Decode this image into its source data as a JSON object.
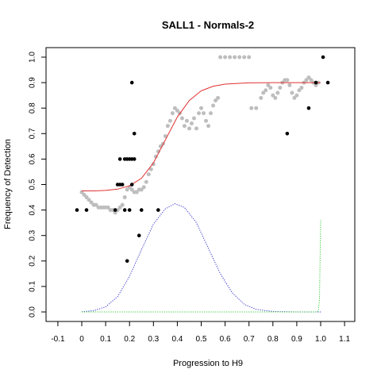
{
  "chart_data": {
    "type": "scatter",
    "title": "SALL1 - Normals-2",
    "xlabel": "Progression to H9",
    "ylabel": "Frequency of Detection",
    "xlim": [
      -0.1,
      1.1
    ],
    "ylim": [
      0.0,
      1.0
    ],
    "x_ticks": [
      "-0.1",
      "0",
      "0.1",
      "0.2",
      "0.3",
      "0.4",
      "0.5",
      "0.6",
      "0.7",
      "0.8",
      "0.9",
      "1.0",
      "1.1"
    ],
    "x_tick_values": [
      -0.1,
      0.0,
      0.1,
      0.2,
      0.3,
      0.4,
      0.5,
      0.6,
      0.7,
      0.8,
      0.9,
      1.0,
      1.1
    ],
    "y_ticks": [
      "0.0",
      "0.1",
      "0.2",
      "0.3",
      "0.4",
      "0.5",
      "0.6",
      "0.7",
      "0.8",
      "0.9",
      "1.0"
    ],
    "y_tick_values": [
      0.0,
      0.1,
      0.2,
      0.3,
      0.4,
      0.5,
      0.6,
      0.7,
      0.8,
      0.9,
      1.0
    ],
    "grid": false,
    "series": [
      {
        "kind": "points",
        "color": "#000000",
        "points": [
          [
            -0.02,
            0.4
          ],
          [
            0.02,
            0.4
          ],
          [
            0.14,
            0.4
          ],
          [
            0.15,
            0.5
          ],
          [
            0.16,
            0.6
          ],
          [
            0.16,
            0.5
          ],
          [
            0.17,
            0.5
          ],
          [
            0.18,
            0.6
          ],
          [
            0.18,
            0.4
          ],
          [
            0.19,
            0.6
          ],
          [
            0.19,
            0.2
          ],
          [
            0.2,
            0.4
          ],
          [
            0.2,
            0.6
          ],
          [
            0.21,
            0.6
          ],
          [
            0.21,
            0.5
          ],
          [
            0.21,
            0.9
          ],
          [
            0.22,
            0.7
          ],
          [
            0.22,
            0.6
          ],
          [
            0.24,
            0.3
          ],
          [
            0.25,
            0.4
          ],
          [
            0.32,
            0.4
          ],
          [
            0.86,
            0.7
          ],
          [
            0.95,
            0.8
          ],
          [
            0.98,
            0.9
          ],
          [
            1.01,
            1.0
          ],
          [
            1.03,
            0.9
          ]
        ]
      },
      {
        "kind": "points",
        "color": "#bebebe",
        "points": [
          [
            0.0,
            0.47
          ],
          [
            0.01,
            0.46
          ],
          [
            0.02,
            0.45
          ],
          [
            0.03,
            0.44
          ],
          [
            0.04,
            0.43
          ],
          [
            0.05,
            0.42
          ],
          [
            0.06,
            0.42
          ],
          [
            0.07,
            0.41
          ],
          [
            0.08,
            0.41
          ],
          [
            0.09,
            0.41
          ],
          [
            0.1,
            0.41
          ],
          [
            0.11,
            0.41
          ],
          [
            0.12,
            0.4
          ],
          [
            0.13,
            0.4
          ],
          [
            0.14,
            0.39
          ],
          [
            0.15,
            0.4
          ],
          [
            0.16,
            0.41
          ],
          [
            0.17,
            0.42
          ],
          [
            0.18,
            0.45
          ],
          [
            0.19,
            0.48
          ],
          [
            0.2,
            0.49
          ],
          [
            0.21,
            0.48
          ],
          [
            0.22,
            0.47
          ],
          [
            0.23,
            0.47
          ],
          [
            0.24,
            0.48
          ],
          [
            0.25,
            0.48
          ],
          [
            0.26,
            0.49
          ],
          [
            0.27,
            0.51
          ],
          [
            0.28,
            0.54
          ],
          [
            0.29,
            0.56
          ],
          [
            0.3,
            0.58
          ],
          [
            0.31,
            0.61
          ],
          [
            0.32,
            0.63
          ],
          [
            0.33,
            0.65
          ],
          [
            0.34,
            0.66
          ],
          [
            0.35,
            0.69
          ],
          [
            0.36,
            0.73
          ],
          [
            0.37,
            0.75
          ],
          [
            0.38,
            0.78
          ],
          [
            0.39,
            0.8
          ],
          [
            0.4,
            0.79
          ],
          [
            0.41,
            0.78
          ],
          [
            0.42,
            0.76
          ],
          [
            0.43,
            0.73
          ],
          [
            0.44,
            0.75
          ],
          [
            0.45,
            0.72
          ],
          [
            0.46,
            0.74
          ],
          [
            0.47,
            0.76
          ],
          [
            0.48,
            0.72
          ],
          [
            0.49,
            0.78
          ],
          [
            0.5,
            0.8
          ],
          [
            0.51,
            0.78
          ],
          [
            0.52,
            0.75
          ],
          [
            0.53,
            0.73
          ],
          [
            0.54,
            0.78
          ],
          [
            0.55,
            0.81
          ],
          [
            0.56,
            0.83
          ],
          [
            0.57,
            0.84
          ],
          [
            0.58,
            1.0
          ],
          [
            0.6,
            1.0
          ],
          [
            0.62,
            1.0
          ],
          [
            0.64,
            1.0
          ],
          [
            0.66,
            1.0
          ],
          [
            0.68,
            1.0
          ],
          [
            0.7,
            1.0
          ],
          [
            0.71,
            0.8
          ],
          [
            0.73,
            0.8
          ],
          [
            0.75,
            0.84
          ],
          [
            0.76,
            0.86
          ],
          [
            0.77,
            0.87
          ],
          [
            0.78,
            0.89
          ],
          [
            0.79,
            0.88
          ],
          [
            0.8,
            0.85
          ],
          [
            0.81,
            0.84
          ],
          [
            0.82,
            0.86
          ],
          [
            0.83,
            0.88
          ],
          [
            0.84,
            0.9
          ],
          [
            0.85,
            0.91
          ],
          [
            0.86,
            0.91
          ],
          [
            0.87,
            0.89
          ],
          [
            0.88,
            0.86
          ],
          [
            0.89,
            0.84
          ],
          [
            0.9,
            0.85
          ],
          [
            0.91,
            0.87
          ],
          [
            0.92,
            0.88
          ],
          [
            0.93,
            0.9
          ],
          [
            0.94,
            0.91
          ],
          [
            0.95,
            0.92
          ],
          [
            0.96,
            0.91
          ],
          [
            0.97,
            0.9
          ],
          [
            0.98,
            0.89
          ],
          [
            0.99,
            0.9
          ]
        ]
      },
      {
        "kind": "line",
        "color": "#e03030",
        "style": "solid",
        "points": [
          [
            0.0,
            0.475
          ],
          [
            0.05,
            0.475
          ],
          [
            0.1,
            0.477
          ],
          [
            0.15,
            0.482
          ],
          [
            0.2,
            0.495
          ],
          [
            0.25,
            0.525
          ],
          [
            0.3,
            0.585
          ],
          [
            0.35,
            0.675
          ],
          [
            0.4,
            0.765
          ],
          [
            0.45,
            0.83
          ],
          [
            0.5,
            0.868
          ],
          [
            0.55,
            0.886
          ],
          [
            0.6,
            0.894
          ],
          [
            0.65,
            0.897
          ],
          [
            0.7,
            0.899
          ],
          [
            0.8,
            0.9
          ],
          [
            0.9,
            0.9
          ],
          [
            1.0,
            0.9
          ]
        ]
      },
      {
        "kind": "line",
        "color": "#3333cc",
        "style": "dotted",
        "points": [
          [
            0.0,
            0.001
          ],
          [
            0.05,
            0.005
          ],
          [
            0.1,
            0.02
          ],
          [
            0.15,
            0.06
          ],
          [
            0.2,
            0.14
          ],
          [
            0.25,
            0.245
          ],
          [
            0.3,
            0.345
          ],
          [
            0.35,
            0.405
          ],
          [
            0.39,
            0.425
          ],
          [
            0.43,
            0.41
          ],
          [
            0.48,
            0.35
          ],
          [
            0.53,
            0.25
          ],
          [
            0.58,
            0.15
          ],
          [
            0.63,
            0.075
          ],
          [
            0.68,
            0.03
          ],
          [
            0.73,
            0.01
          ],
          [
            0.8,
            0.002
          ],
          [
            0.9,
            0.0
          ],
          [
            1.0,
            0.0
          ]
        ]
      },
      {
        "kind": "line",
        "color": "#33cc33",
        "style": "dotted",
        "points": [
          [
            0.0,
            0.0
          ],
          [
            0.5,
            0.0
          ],
          [
            0.9,
            0.0
          ],
          [
            0.98,
            0.0
          ],
          [
            0.99,
            0.003
          ],
          [
            0.995,
            0.05
          ],
          [
            1.0,
            0.36
          ]
        ]
      }
    ]
  }
}
